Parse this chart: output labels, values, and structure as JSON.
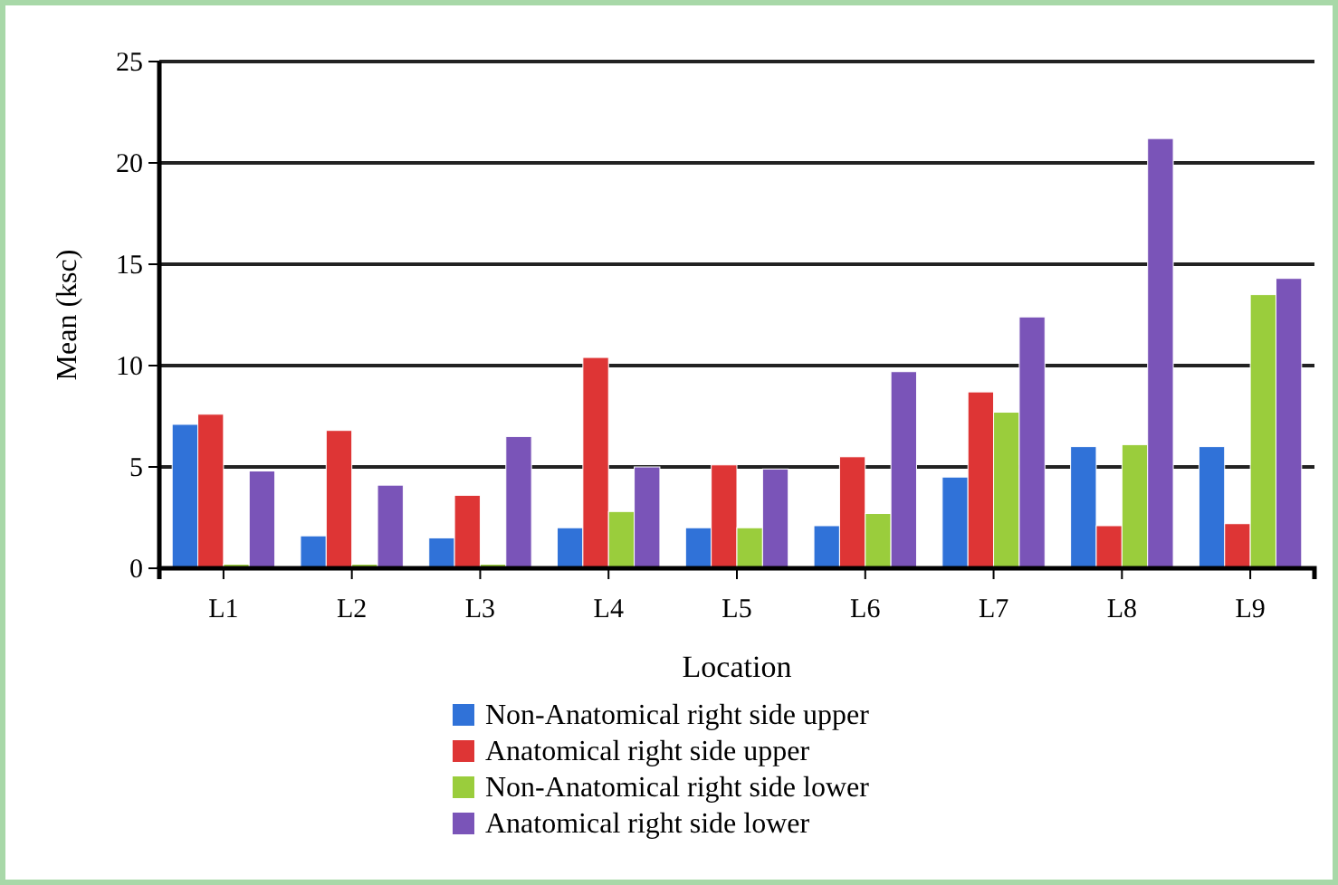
{
  "chart_data": {
    "type": "bar",
    "xlabel": "Location",
    "ylabel": "Mean (ksc)",
    "categories": [
      "L1",
      "L2",
      "L3",
      "L4",
      "L5",
      "L6",
      "L7",
      "L8",
      "L9"
    ],
    "series": [
      {
        "name": "Non-Anatomical right side upper",
        "color": "#3072d8",
        "values": [
          7.1,
          1.6,
          1.5,
          2.0,
          2.0,
          2.1,
          4.5,
          6.0,
          6.0
        ]
      },
      {
        "name": "Anatomical right side upper",
        "color": "#de3535",
        "values": [
          7.6,
          6.8,
          3.6,
          10.4,
          5.1,
          5.5,
          8.7,
          2.1,
          2.2
        ]
      },
      {
        "name": "Non-Anatomical right side lower",
        "color": "#9acd3c",
        "values": [
          0.2,
          0.2,
          0.2,
          2.8,
          2.0,
          2.7,
          7.7,
          6.1,
          13.5
        ]
      },
      {
        "name": "Anatomical right side lower",
        "color": "#7a54b8",
        "values": [
          4.8,
          4.1,
          6.5,
          5.0,
          4.9,
          9.7,
          12.4,
          21.2,
          14.3
        ]
      }
    ],
    "ylim": [
      0,
      25
    ],
    "yticks": [
      0,
      5,
      10,
      15,
      20,
      25
    ],
    "grid": "y",
    "legend": "bottom"
  }
}
